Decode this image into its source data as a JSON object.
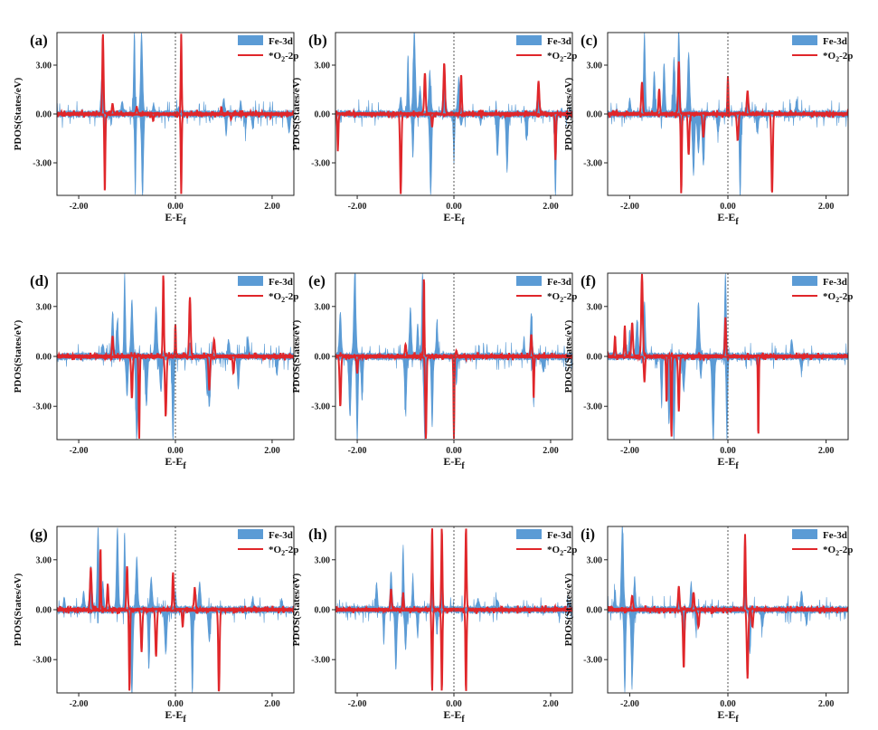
{
  "legend": {
    "fe": "Fe-3d",
    "o2_parts": [
      "*O",
      "2",
      "-2p"
    ]
  },
  "ylabel": "PDOS(States/eV)",
  "xlabel_parts": [
    "E-E",
    "f"
  ],
  "colors": {
    "fe": "#5b9bd5",
    "o2": "#e0262a",
    "fermi": "#555555"
  },
  "chart_data": [
    {
      "panel": "(a)",
      "type": "area",
      "xlim": [
        -2.45,
        2.45
      ],
      "ylim": [
        -5,
        5
      ],
      "xticks": [
        "-2.00",
        "0.00",
        "2.00"
      ],
      "yticks": [
        "3.00",
        "0.00",
        "-3.00"
      ],
      "fe_peaks": [
        [
          -1.52,
          2.2
        ],
        [
          -1.45,
          -2.5
        ],
        [
          -1.1,
          0.6
        ],
        [
          -0.85,
          4.9
        ],
        [
          -0.83,
          -4.9
        ],
        [
          -0.7,
          4.9
        ],
        [
          -0.68,
          -4.9
        ],
        [
          -0.45,
          0.5
        ],
        [
          0.08,
          0.3
        ],
        [
          1.0,
          0.8
        ],
        [
          1.05,
          -1.2
        ],
        [
          1.35,
          0.7
        ],
        [
          1.45,
          -1.0
        ],
        [
          1.6,
          -0.8
        ],
        [
          2.35,
          -1.0
        ]
      ],
      "o2_peaks": [
        [
          -1.5,
          4.9
        ],
        [
          -1.46,
          -4.9
        ],
        [
          -1.3,
          0.6
        ],
        [
          -0.8,
          0.4
        ],
        [
          -0.46,
          -0.4
        ],
        [
          0.12,
          4.9
        ],
        [
          0.12,
          -4.9
        ],
        [
          0.95,
          0.4
        ],
        [
          1.15,
          -0.3
        ]
      ]
    },
    {
      "panel": "(b)",
      "type": "area",
      "xlim": [
        -2.45,
        2.45
      ],
      "ylim": [
        -5,
        5
      ],
      "xticks": [
        "-2.00",
        "0.00",
        "2.00"
      ],
      "yticks": [
        "3.00",
        "0.00",
        "-3.00"
      ],
      "fe_peaks": [
        [
          -1.1,
          0.9
        ],
        [
          -0.95,
          3.5
        ],
        [
          -0.82,
          4.9
        ],
        [
          -0.85,
          -2.5
        ],
        [
          -0.7,
          1.5
        ],
        [
          -0.5,
          2.5
        ],
        [
          -0.48,
          -4.9
        ],
        [
          -0.2,
          2.9
        ],
        [
          0.0,
          -3.0
        ],
        [
          0.1,
          2.0
        ],
        [
          0.15,
          -0.6
        ],
        [
          0.55,
          -0.5
        ],
        [
          0.9,
          -2.5
        ],
        [
          1.1,
          -3.4
        ],
        [
          1.5,
          -1.5
        ],
        [
          1.75,
          1.8
        ],
        [
          2.1,
          -4.9
        ]
      ],
      "o2_peaks": [
        [
          -2.4,
          -2.1
        ],
        [
          -1.1,
          -4.9
        ],
        [
          -0.6,
          2.5
        ],
        [
          -0.45,
          -0.8
        ],
        [
          -0.2,
          3.1
        ],
        [
          0.15,
          2.4
        ],
        [
          1.75,
          2.0
        ],
        [
          2.1,
          -2.8
        ]
      ]
    },
    {
      "panel": "(c)",
      "type": "area",
      "xlim": [
        -2.45,
        2.45
      ],
      "ylim": [
        -5,
        5
      ],
      "xticks": [
        "-2.00",
        "0.00",
        "2.00"
      ],
      "yticks": [
        "3.00",
        "0.00",
        "-3.00"
      ],
      "fe_peaks": [
        [
          -2.0,
          0.8
        ],
        [
          -1.7,
          4.9
        ],
        [
          -1.5,
          2.5
        ],
        [
          -1.3,
          3.0
        ],
        [
          -1.1,
          3.3
        ],
        [
          -1.0,
          4.9
        ],
        [
          -0.95,
          -3.5
        ],
        [
          -0.8,
          3.6
        ],
        [
          -0.7,
          -3.6
        ],
        [
          -0.6,
          -2.2
        ],
        [
          -0.5,
          -3.0
        ],
        [
          -0.2,
          -1.0
        ],
        [
          0.0,
          2.1
        ],
        [
          0.25,
          -4.9
        ],
        [
          0.4,
          1.2
        ],
        [
          0.6,
          -1.0
        ],
        [
          1.4,
          0.7
        ]
      ],
      "o2_peaks": [
        [
          -1.75,
          1.9
        ],
        [
          -1.4,
          1.5
        ],
        [
          -1.0,
          3.2
        ],
        [
          -0.95,
          -4.9
        ],
        [
          -0.8,
          -2.5
        ],
        [
          -0.5,
          -1.4
        ],
        [
          0.0,
          2.3
        ],
        [
          0.2,
          -1.6
        ],
        [
          0.4,
          1.4
        ],
        [
          0.9,
          -4.9
        ]
      ]
    },
    {
      "panel": "(d)",
      "type": "area",
      "xlim": [
        -2.45,
        2.45
      ],
      "ylim": [
        -5,
        5
      ],
      "xticks": [
        "-2.00",
        "0.00",
        "2.00"
      ],
      "yticks": [
        "3.00",
        "0.00",
        "-3.00"
      ],
      "fe_peaks": [
        [
          -1.5,
          0.6
        ],
        [
          -1.3,
          2.5
        ],
        [
          -1.2,
          2.0
        ],
        [
          -1.05,
          4.9
        ],
        [
          -1.0,
          -2.2
        ],
        [
          -0.9,
          3.3
        ],
        [
          -0.8,
          -4.9
        ],
        [
          -0.6,
          -2.8
        ],
        [
          -0.4,
          2.8
        ],
        [
          -0.3,
          -2.0
        ],
        [
          -0.05,
          -4.9
        ],
        [
          0.3,
          0.6
        ],
        [
          0.65,
          -1.9
        ],
        [
          0.7,
          -2.9
        ],
        [
          1.1,
          0.9
        ],
        [
          1.3,
          -1.8
        ],
        [
          1.5,
          1.0
        ],
        [
          2.1,
          -1.0
        ]
      ],
      "o2_peaks": [
        [
          -1.3,
          1.2
        ],
        [
          -0.9,
          -2.5
        ],
        [
          -0.75,
          -4.9
        ],
        [
          -0.25,
          4.9
        ],
        [
          -0.2,
          -3.5
        ],
        [
          0.0,
          1.9
        ],
        [
          0.3,
          3.5
        ],
        [
          0.7,
          -2.0
        ],
        [
          0.8,
          1.0
        ],
        [
          1.2,
          -1.0
        ]
      ]
    },
    {
      "panel": "(e)",
      "type": "area",
      "xlim": [
        -2.45,
        2.45
      ],
      "ylim": [
        -5,
        5
      ],
      "xticks": [
        "-2.00",
        "0.00",
        "2.00"
      ],
      "yticks": [
        "3.00",
        "0.00",
        "-3.00"
      ],
      "fe_peaks": [
        [
          -2.35,
          2.5
        ],
        [
          -2.15,
          -3.5
        ],
        [
          -2.05,
          4.9
        ],
        [
          -2.0,
          -4.9
        ],
        [
          -1.9,
          -2.5
        ],
        [
          -1.0,
          -3.2
        ],
        [
          -0.9,
          2.8
        ],
        [
          -0.75,
          1.9
        ],
        [
          -0.65,
          4.9
        ],
        [
          -0.6,
          -4.9
        ],
        [
          -0.45,
          -4.2
        ],
        [
          -0.35,
          2.0
        ],
        [
          0.05,
          -1.5
        ],
        [
          1.45,
          1.0
        ],
        [
          1.6,
          2.5
        ],
        [
          1.65,
          -2.9
        ],
        [
          1.85,
          -0.8
        ]
      ],
      "o2_peaks": [
        [
          -2.35,
          -3.0
        ],
        [
          -2.0,
          -1.0
        ],
        [
          -1.0,
          0.7
        ],
        [
          -0.62,
          4.9
        ],
        [
          -0.58,
          -4.9
        ],
        [
          0.0,
          -4.9
        ],
        [
          0.05,
          0.3
        ],
        [
          1.6,
          1.3
        ],
        [
          1.65,
          -2.5
        ]
      ]
    },
    {
      "panel": "(f)",
      "type": "area",
      "xlim": [
        -2.45,
        2.45
      ],
      "ylim": [
        -5,
        5
      ],
      "xticks": [
        "-2.00",
        "0.00",
        "2.00"
      ],
      "yticks": [
        "3.00",
        "0.00",
        "-3.00"
      ],
      "fe_peaks": [
        [
          -2.3,
          1.0
        ],
        [
          -2.0,
          1.4
        ],
        [
          -1.85,
          2.0
        ],
        [
          -1.7,
          3.2
        ],
        [
          -1.35,
          -3.0
        ],
        [
          -1.2,
          -4.0
        ],
        [
          -1.1,
          -4.9
        ],
        [
          -0.9,
          -2.0
        ],
        [
          -0.6,
          3.1
        ],
        [
          -0.55,
          -1.2
        ],
        [
          -0.3,
          -4.9
        ],
        [
          -0.05,
          4.9
        ],
        [
          -0.02,
          -4.9
        ],
        [
          0.6,
          -0.5
        ],
        [
          1.3,
          0.9
        ],
        [
          1.5,
          -0.8
        ]
      ],
      "o2_peaks": [
        [
          -2.3,
          1.2
        ],
        [
          -2.1,
          1.8
        ],
        [
          -1.95,
          2.0
        ],
        [
          -1.75,
          4.9
        ],
        [
          -1.7,
          -1.5
        ],
        [
          -1.25,
          -2.8
        ],
        [
          -1.15,
          -4.9
        ],
        [
          -1.0,
          -3.3
        ],
        [
          -0.05,
          2.3
        ],
        [
          0.62,
          -4.9
        ]
      ]
    },
    {
      "panel": "(g)",
      "type": "area",
      "xlim": [
        -2.45,
        2.45
      ],
      "ylim": [
        -5,
        5
      ],
      "xticks": [
        "-2.00",
        "0.00",
        "2.00"
      ],
      "yticks": [
        "3.00",
        "0.00",
        "-3.00"
      ],
      "fe_peaks": [
        [
          -2.3,
          0.6
        ],
        [
          -1.9,
          1.0
        ],
        [
          -1.75,
          2.5
        ],
        [
          -1.6,
          4.9
        ],
        [
          -1.5,
          1.5
        ],
        [
          -1.2,
          4.8
        ],
        [
          -1.05,
          4.4
        ],
        [
          -0.9,
          -4.9
        ],
        [
          -0.8,
          3.0
        ],
        [
          -0.55,
          -3.5
        ],
        [
          -0.5,
          1.8
        ],
        [
          -0.2,
          -2.5
        ],
        [
          0.0,
          1.0
        ],
        [
          0.35,
          -4.9
        ],
        [
          0.5,
          1.5
        ],
        [
          0.7,
          -1.8
        ],
        [
          1.6,
          0.6
        ],
        [
          2.2,
          0.5
        ]
      ],
      "o2_peaks": [
        [
          -1.75,
          2.5
        ],
        [
          -1.55,
          3.8
        ],
        [
          -1.4,
          1.5
        ],
        [
          -1.0,
          2.6
        ],
        [
          -0.95,
          -4.9
        ],
        [
          -0.7,
          -2.5
        ],
        [
          -0.4,
          -2.8
        ],
        [
          -0.05,
          2.2
        ],
        [
          0.15,
          -1.0
        ],
        [
          0.4,
          1.3
        ],
        [
          0.9,
          -4.9
        ]
      ]
    },
    {
      "panel": "(h)",
      "type": "area",
      "xlim": [
        -2.45,
        2.45
      ],
      "ylim": [
        -5,
        5
      ],
      "xticks": [
        "-2.00",
        "0.00",
        "2.00"
      ],
      "yticks": [
        "3.00",
        "0.00",
        "-3.00"
      ],
      "fe_peaks": [
        [
          -1.6,
          1.5
        ],
        [
          -1.45,
          -2.0
        ],
        [
          -1.3,
          2.2
        ],
        [
          -1.2,
          -3.5
        ],
        [
          -1.05,
          3.8
        ],
        [
          -1.0,
          -2.2
        ],
        [
          -0.85,
          1.8
        ],
        [
          -0.75,
          -1.5
        ],
        [
          -0.45,
          1.2
        ],
        [
          -0.35,
          -1.2
        ],
        [
          -0.25,
          2.0
        ],
        [
          0.5,
          0.5
        ],
        [
          0.9,
          0.5
        ]
      ],
      "o2_peaks": [
        [
          -1.3,
          1.2
        ],
        [
          -1.05,
          1.0
        ],
        [
          -0.45,
          4.9
        ],
        [
          -0.45,
          -4.9
        ],
        [
          -0.25,
          4.9
        ],
        [
          -0.25,
          -4.9
        ],
        [
          0.25,
          4.9
        ],
        [
          0.25,
          -4.9
        ]
      ]
    },
    {
      "panel": "(i)",
      "type": "area",
      "xlim": [
        -2.45,
        2.45
      ],
      "ylim": [
        -5,
        5
      ],
      "xticks": [
        "-2.00",
        "0.00",
        "2.00"
      ],
      "yticks": [
        "3.00",
        "0.00",
        "-3.00"
      ],
      "fe_peaks": [
        [
          -2.3,
          0.8
        ],
        [
          -2.15,
          4.9
        ],
        [
          -2.1,
          -4.9
        ],
        [
          -1.95,
          -4.0
        ],
        [
          -1.9,
          1.8
        ],
        [
          -1.0,
          1.2
        ],
        [
          -0.9,
          -2.8
        ],
        [
          -0.75,
          1.5
        ],
        [
          -0.65,
          -1.2
        ],
        [
          0.35,
          1.4
        ],
        [
          0.45,
          -2.5
        ],
        [
          0.7,
          -1.0
        ],
        [
          1.5,
          1.0
        ],
        [
          1.6,
          -0.8
        ]
      ],
      "o2_peaks": [
        [
          -1.95,
          0.8
        ],
        [
          -1.0,
          1.4
        ],
        [
          -0.9,
          -3.5
        ],
        [
          -0.7,
          1.0
        ],
        [
          -0.6,
          -1.0
        ],
        [
          0.35,
          4.5
        ],
        [
          0.4,
          -4.1
        ],
        [
          0.5,
          -1.0
        ]
      ]
    }
  ]
}
